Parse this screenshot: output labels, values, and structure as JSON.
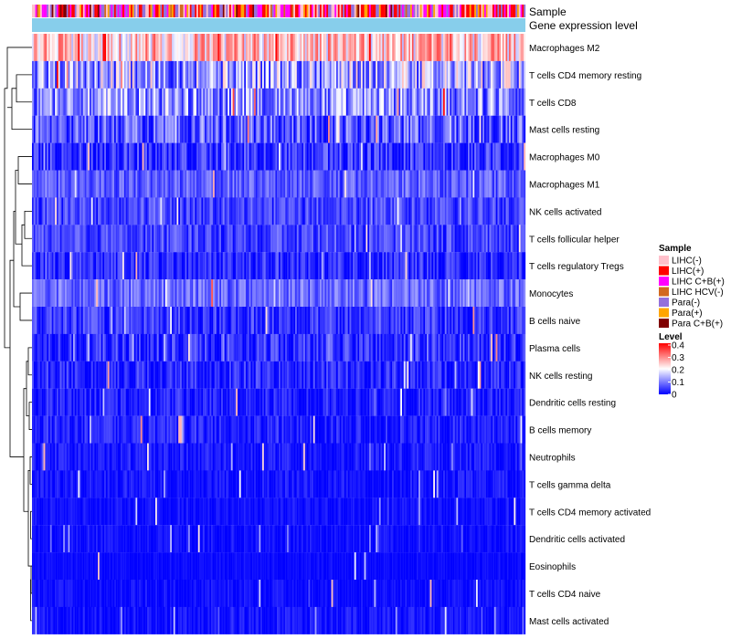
{
  "chart_data": {
    "type": "heatmap",
    "annotation_tracks": [
      "Sample",
      "Gene expression level"
    ],
    "rows": [
      {
        "label": "Macrophages M2",
        "mean": 0.24,
        "spread": 0.1
      },
      {
        "label": "T cells CD4 memory resting",
        "mean": 0.13,
        "spread": 0.12
      },
      {
        "label": "T cells CD8",
        "mean": 0.11,
        "spread": 0.1
      },
      {
        "label": "Mast cells resting",
        "mean": 0.07,
        "spread": 0.08
      },
      {
        "label": "Macrophages M0",
        "mean": 0.04,
        "spread": 0.06
      },
      {
        "label": "Macrophages M1",
        "mean": 0.07,
        "spread": 0.05
      },
      {
        "label": "NK cells activated",
        "mean": 0.05,
        "spread": 0.05
      },
      {
        "label": "T cells follicular helper",
        "mean": 0.05,
        "spread": 0.05
      },
      {
        "label": "T cells regulatory  Tregs",
        "mean": 0.03,
        "spread": 0.05
      },
      {
        "label": "Monocytes",
        "mean": 0.08,
        "spread": 0.05
      },
      {
        "label": "B cells naive",
        "mean": 0.04,
        "spread": 0.05
      },
      {
        "label": "Plasma cells",
        "mean": 0.03,
        "spread": 0.06
      },
      {
        "label": "NK cells resting",
        "mean": 0.025,
        "spread": 0.05
      },
      {
        "label": "Dendritic cells resting",
        "mean": 0.02,
        "spread": 0.04
      },
      {
        "label": "B cells memory",
        "mean": 0.02,
        "spread": 0.04
      },
      {
        "label": "Neutrophils",
        "mean": 0.015,
        "spread": 0.03
      },
      {
        "label": "T cells gamma delta",
        "mean": 0.01,
        "spread": 0.03
      },
      {
        "label": "T cells CD4 memory activated",
        "mean": 0.008,
        "spread": 0.02
      },
      {
        "label": "Dendritic cells activated",
        "mean": 0.008,
        "spread": 0.02
      },
      {
        "label": "Eosinophils",
        "mean": 0.005,
        "spread": 0.01
      },
      {
        "label": "T cells CD4 naive",
        "mean": 0.008,
        "spread": 0.02
      },
      {
        "label": "Mast cells activated",
        "mean": 0.01,
        "spread": 0.03
      }
    ],
    "n_samples": 300,
    "color_scale": {
      "min": 0,
      "max": 0.4,
      "stops": [
        "#0000ff",
        "#ffffff",
        "#ff0000"
      ],
      "ticks": [
        "0.4",
        "0.3",
        "0.2",
        "0.1",
        "0"
      ]
    },
    "gene_expression_color": "#87ceeb",
    "legend": {
      "sample_title": "Sample",
      "level_title": "Level",
      "sample_groups": [
        {
          "label": "LIHC(-)",
          "color": "#ffc0cb"
        },
        {
          "label": "LIHC(+)",
          "color": "#ff0000"
        },
        {
          "label": "LIHC C+B(+)",
          "color": "#ff00ff"
        },
        {
          "label": "LIHC HCV(-)",
          "color": "#d2691e"
        },
        {
          "label": "Para(-)",
          "color": "#9370db"
        },
        {
          "label": "Para(+)",
          "color": "#ffa500"
        },
        {
          "label": "Para C+B(+)",
          "color": "#800000"
        }
      ],
      "position": "right"
    },
    "dendrogram": "rows"
  }
}
